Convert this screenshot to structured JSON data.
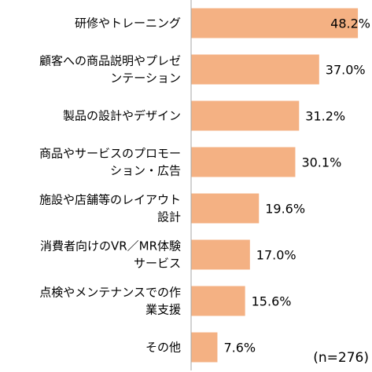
{
  "chart_data": {
    "type": "bar",
    "orientation": "horizontal",
    "categories": [
      [
        "研修やトレーニング"
      ],
      [
        "顧客への商品説明やプレゼ",
        "ンテーション"
      ],
      [
        "製品の設計やデザイン"
      ],
      [
        "商品やサービスのプロモー",
        "ション・広告"
      ],
      [
        "施設や店舗等のレイアウト",
        "設計"
      ],
      [
        "消費者向けのVR／MR体験",
        "サービス"
      ],
      [
        "点検やメンテナンスでの作",
        "業支援"
      ],
      [
        "その他"
      ]
    ],
    "values": [
      48.2,
      37.0,
      31.2,
      30.1,
      19.6,
      17.0,
      15.6,
      7.6
    ],
    "value_labels": [
      "48.2%",
      "37.0%",
      "31.2%",
      "30.1%",
      "19.6%",
      "17.0%",
      "15.6%",
      "7.6%"
    ],
    "xlim": [
      0,
      50
    ],
    "grid": false,
    "legend": "none",
    "bar_color": "#F4B183",
    "axis_color": "#A6A6A6",
    "annotation": "(n=276)"
  }
}
